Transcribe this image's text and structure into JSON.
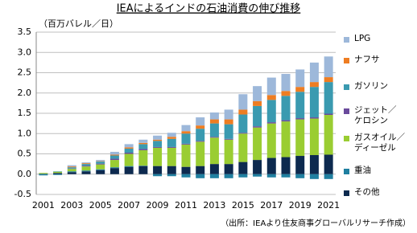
{
  "chart_data": {
    "type": "bar",
    "stacked": true,
    "title": "IEAによるインドの石油消費の伸び推移",
    "y_label": "（百万バレル／日）",
    "source": "（出所：IEAより住友商事グローバルリサーチ作成）",
    "categories": [
      "2001",
      null,
      "2003",
      null,
      "2005",
      null,
      "2007",
      null,
      "2009",
      null,
      "2011",
      null,
      "2013",
      null,
      "2015",
      null,
      "2017",
      null,
      "2019",
      null,
      "2021"
    ],
    "ylim": [
      -0.5,
      3.5
    ],
    "yticks": [
      -0.5,
      {
        "value": 0,
        "label": "0.0"
      },
      0.5,
      {
        "value": 1,
        "label": "1.0"
      },
      1.5,
      {
        "value": 2,
        "label": "2.0"
      },
      2.5,
      {
        "value": 3,
        "label": "3.0"
      },
      3.5
    ],
    "grid": true,
    "legend": "right",
    "series": [
      {
        "name": "その他",
        "color": "#0d2a4f",
        "values": [
          0.01,
          0.03,
          0.05,
          0.07,
          0.1,
          0.15,
          0.18,
          0.2,
          0.2,
          0.2,
          0.18,
          0.2,
          0.25,
          0.25,
          0.3,
          0.35,
          0.4,
          0.42,
          0.45,
          0.47,
          0.48
        ]
      },
      {
        "name": "重油",
        "color": "#1f7fa0",
        "values": [
          -0.03,
          -0.02,
          0.02,
          0.02,
          0.02,
          0.02,
          0.02,
          0.01,
          -0.05,
          -0.05,
          -0.08,
          -0.1,
          -0.1,
          -0.1,
          -0.08,
          -0.06,
          -0.08,
          -0.08,
          -0.1,
          -0.12,
          -0.12
        ]
      },
      {
        "name": "ガスオイル／\nディーゼル",
        "color": "#9acd32",
        "values": [
          0.02,
          0.03,
          0.06,
          0.1,
          0.12,
          0.18,
          0.3,
          0.38,
          0.45,
          0.45,
          0.55,
          0.6,
          0.65,
          0.6,
          0.7,
          0.8,
          0.85,
          0.88,
          0.9,
          0.9,
          0.98
        ]
      },
      {
        "name": "ジェット／\nケロシン",
        "color": "#6a4a9c",
        "values": [
          0,
          0,
          0.01,
          0.02,
          0.02,
          0.03,
          0.03,
          0.03,
          0.02,
          0.02,
          0.02,
          0.02,
          0.02,
          0.02,
          0.02,
          0.03,
          0.03,
          0.03,
          0.03,
          0.03,
          0.03
        ]
      },
      {
        "name": "ガソリン",
        "color": "#3a9ab0",
        "values": [
          0,
          0.01,
          0.03,
          0.04,
          0.05,
          0.08,
          0.1,
          0.12,
          0.15,
          0.2,
          0.25,
          0.3,
          0.33,
          0.36,
          0.45,
          0.5,
          0.55,
          0.6,
          0.65,
          0.75,
          0.78
        ]
      },
      {
        "name": "ナフサ",
        "color": "#ee7d22",
        "values": [
          0,
          0,
          0.02,
          0.02,
          0.01,
          0.02,
          0.03,
          0.03,
          0.03,
          0.05,
          0.06,
          0.08,
          0.1,
          0.12,
          0.12,
          0.12,
          0.12,
          0.12,
          0.12,
          0.12,
          0.12
        ]
      },
      {
        "name": "LPG",
        "color": "#9db8da",
        "values": [
          0,
          0,
          0.03,
          0.02,
          0.03,
          0.07,
          0.08,
          0.08,
          0.1,
          0.1,
          0.15,
          0.2,
          0.17,
          0.24,
          0.38,
          0.37,
          0.43,
          0.42,
          0.43,
          0.48,
          0.51
        ]
      }
    ]
  }
}
